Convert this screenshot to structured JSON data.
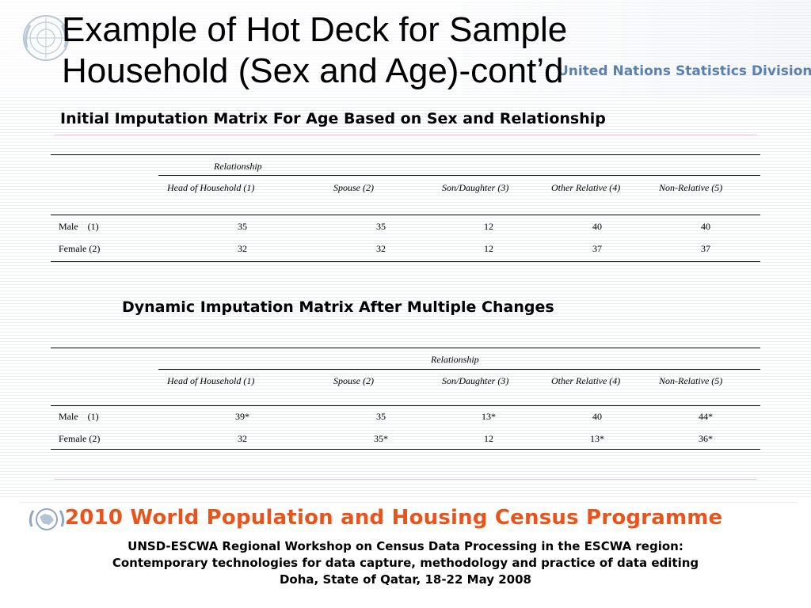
{
  "title_line1": "Example of Hot Deck for Sample",
  "title_line2": "Household (Sex and Age)-cont’d",
  "org_label": "United Nations Statistics Division",
  "initial_matrix": {
    "heading": "Initial Imputation Matrix For Age Based on Sex and Relationship",
    "group_label": "Relationship",
    "columns": [
      "Head of Household (1)",
      "Spouse (2)",
      "Son/Daughter (3)",
      "Other Relative (4)",
      "Non-Relative (5)"
    ],
    "rows": [
      {
        "label": "Male    (1)",
        "values": [
          "35",
          "35",
          "12",
          "40",
          "40"
        ]
      },
      {
        "label": "Female (2)",
        "values": [
          "32",
          "32",
          "12",
          "37",
          "37"
        ]
      }
    ]
  },
  "dynamic_matrix": {
    "heading": "Dynamic Imputation Matrix After Multiple Changes",
    "group_label": "Relationship",
    "columns": [
      "Head of Household (1)",
      "Spouse (2)",
      "Son/Daughter (3)",
      "Other Relative (4)",
      "Non-Relative (5)"
    ],
    "rows": [
      {
        "label": "Male    (1)",
        "values": [
          "39*",
          "35",
          "13*",
          "40",
          "44*"
        ]
      },
      {
        "label": "Female (2)",
        "values": [
          "32",
          "35*",
          "12",
          "13*",
          "36*"
        ]
      }
    ]
  },
  "banner_text": "2010 World Population and Housing Census Programme",
  "footer": {
    "line1": "UNSD-ESCWA Regional Workshop on Census Data Processing in the ESCWA region:",
    "line2": "Contemporary technologies for data capture, methodology and practice of data editing",
    "line3": "Doha, State of Qatar, 18-22 May 2008"
  },
  "colors": {
    "banner_text": "#e8541b",
    "org_label": "#5a7fb3",
    "emblem": "#9fb3cc"
  }
}
